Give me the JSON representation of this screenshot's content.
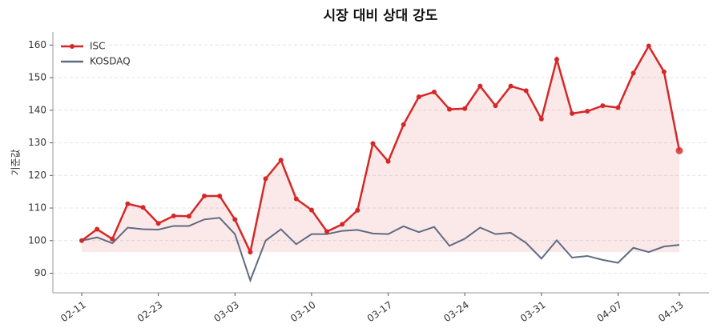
{
  "chart_data": {
    "type": "line",
    "title": "시장 대비 상대 강도",
    "y_label": "기준값",
    "categories": [
      "02-11",
      null,
      null,
      null,
      null,
      "02-23",
      null,
      null,
      null,
      null,
      "03-03",
      null,
      null,
      null,
      null,
      "03-10",
      null,
      null,
      null,
      null,
      "03-17",
      null,
      null,
      null,
      null,
      "03-24",
      null,
      null,
      null,
      null,
      "03-31",
      null,
      null,
      null,
      null,
      "04-07",
      null,
      null,
      null,
      "04-13"
    ],
    "series": [
      {
        "name": "ISC",
        "color": "#d62728",
        "values": [
          100,
          103.5,
          100.5,
          111.3,
          110.2,
          105.3,
          107.6,
          107.5,
          113.7,
          113.7,
          106.5,
          96.5,
          119,
          124.7,
          112.8,
          109.4,
          102.8,
          105,
          109.3,
          129.8,
          124.3,
          135.6,
          144.1,
          145.6,
          140.3,
          140.5,
          147.4,
          141.4,
          147.4,
          146,
          137.3,
          155.6,
          139,
          139.7,
          141.4,
          140.8,
          151.4,
          159.7,
          151.8,
          127.6
        ]
      },
      {
        "name": "KOSDAQ",
        "color": "#5f6b82",
        "values": [
          100,
          101,
          99.2,
          104,
          103.5,
          103.4,
          104.5,
          104.5,
          106.5,
          107,
          102,
          87.8,
          100,
          103.5,
          98.9,
          102,
          102,
          103,
          103.3,
          102.2,
          102,
          104.4,
          102.6,
          104.2,
          98.4,
          100.6,
          104,
          102,
          102.4,
          99.3,
          94.5,
          100.1,
          94.8,
          95.3,
          94.1,
          93.2,
          97.8,
          96.5,
          98.2,
          98.7
        ]
      }
    ],
    "ylim": [
      84,
      164
    ],
    "yticks": [
      90,
      100,
      110,
      120,
      130,
      140,
      150,
      160
    ],
    "grid": true,
    "legend": "upper-left"
  }
}
